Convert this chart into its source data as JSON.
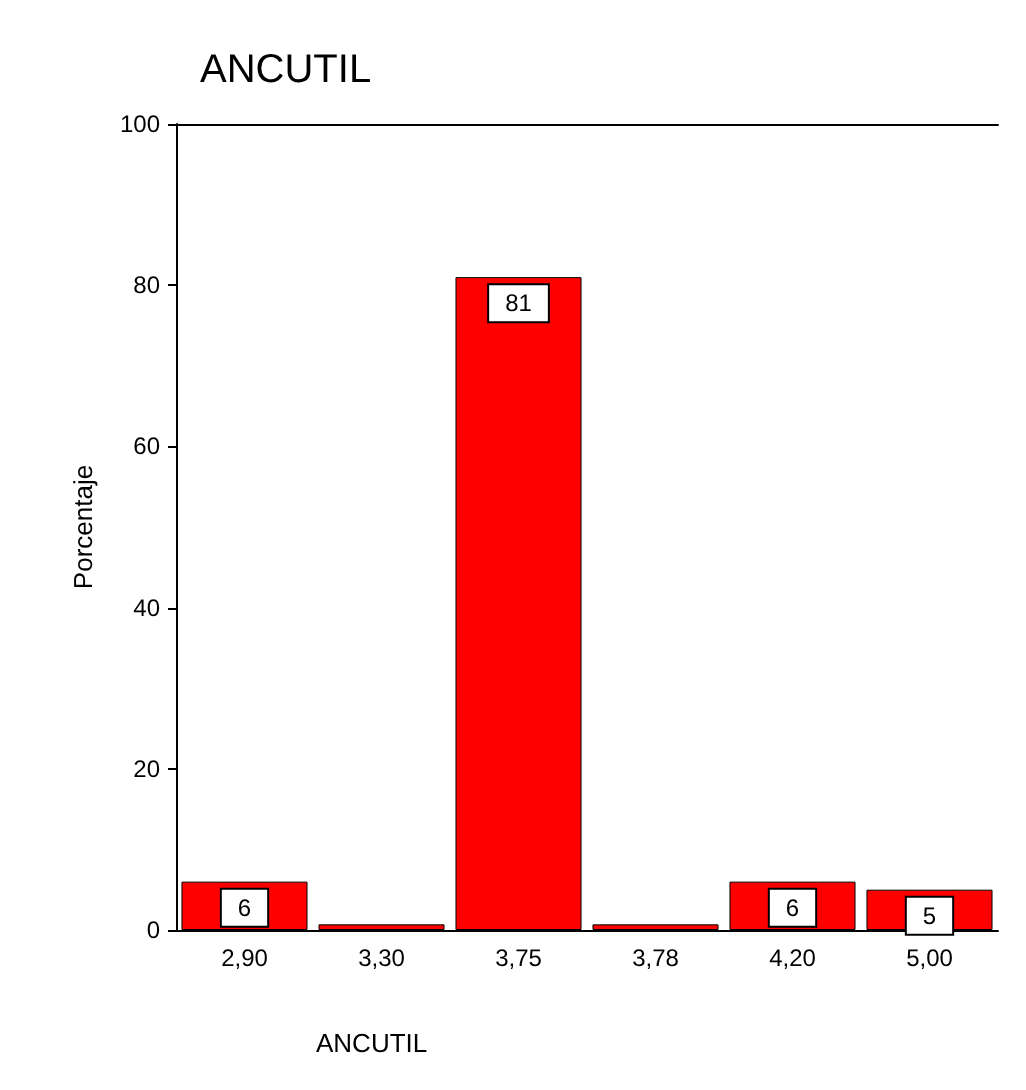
{
  "chart_data": {
    "type": "bar",
    "title": "ANCUTIL",
    "xlabel": "ANCUTIL",
    "ylabel": "Porcentaje",
    "categories": [
      "2,90",
      "3,30",
      "3,75",
      "3,78",
      "4,20",
      "5,00"
    ],
    "values": [
      6,
      0.7,
      81,
      0.7,
      6,
      5
    ],
    "value_labels": [
      "6",
      null,
      "81",
      null,
      "6",
      "5"
    ],
    "color": "#ff0000",
    "ylim": [
      0,
      100
    ],
    "yticks": [
      0,
      20,
      40,
      60,
      80,
      100
    ],
    "grid": false
  }
}
